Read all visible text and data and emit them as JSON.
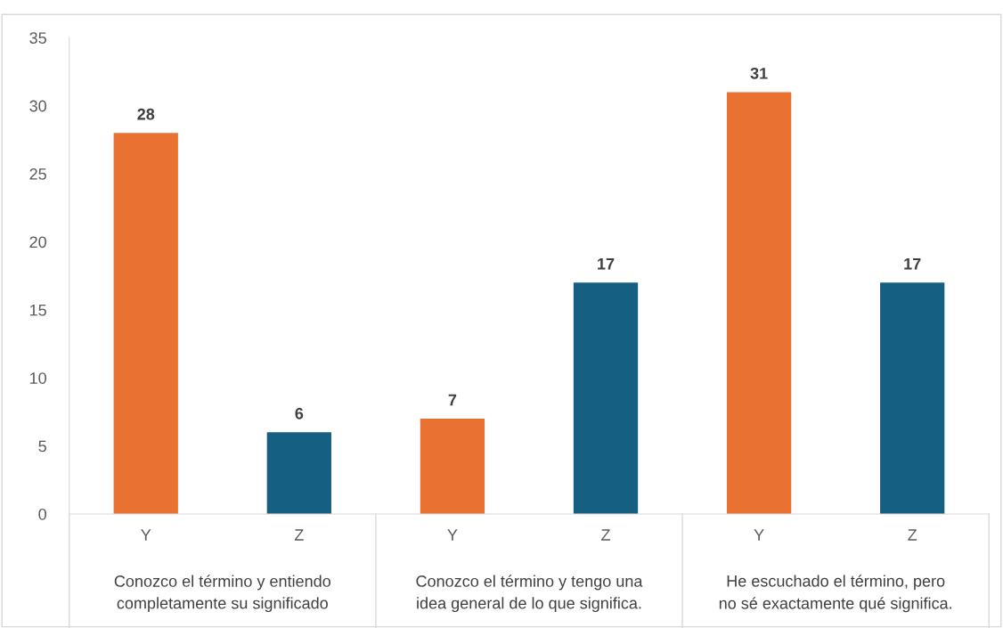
{
  "chart_data": {
    "type": "bar",
    "categories": [
      "Y",
      "Z",
      "Y",
      "Z",
      "Y",
      "Z"
    ],
    "values": [
      28,
      6,
      7,
      17,
      31,
      17
    ],
    "colors": [
      "#e97132",
      "#156082",
      "#e97132",
      "#156082",
      "#e97132",
      "#156082"
    ],
    "data_labels": true,
    "ylim": [
      0,
      35
    ],
    "yticks": [
      0,
      5,
      10,
      15,
      20,
      25,
      30,
      35
    ],
    "grid": false,
    "annotations": [
      "Conozco el término y entiendo completamente su significado",
      "Conozco el término y tengo una idea general de lo que significa.",
      "He escuchado el término, pero no sé exactamente qué significa."
    ]
  }
}
